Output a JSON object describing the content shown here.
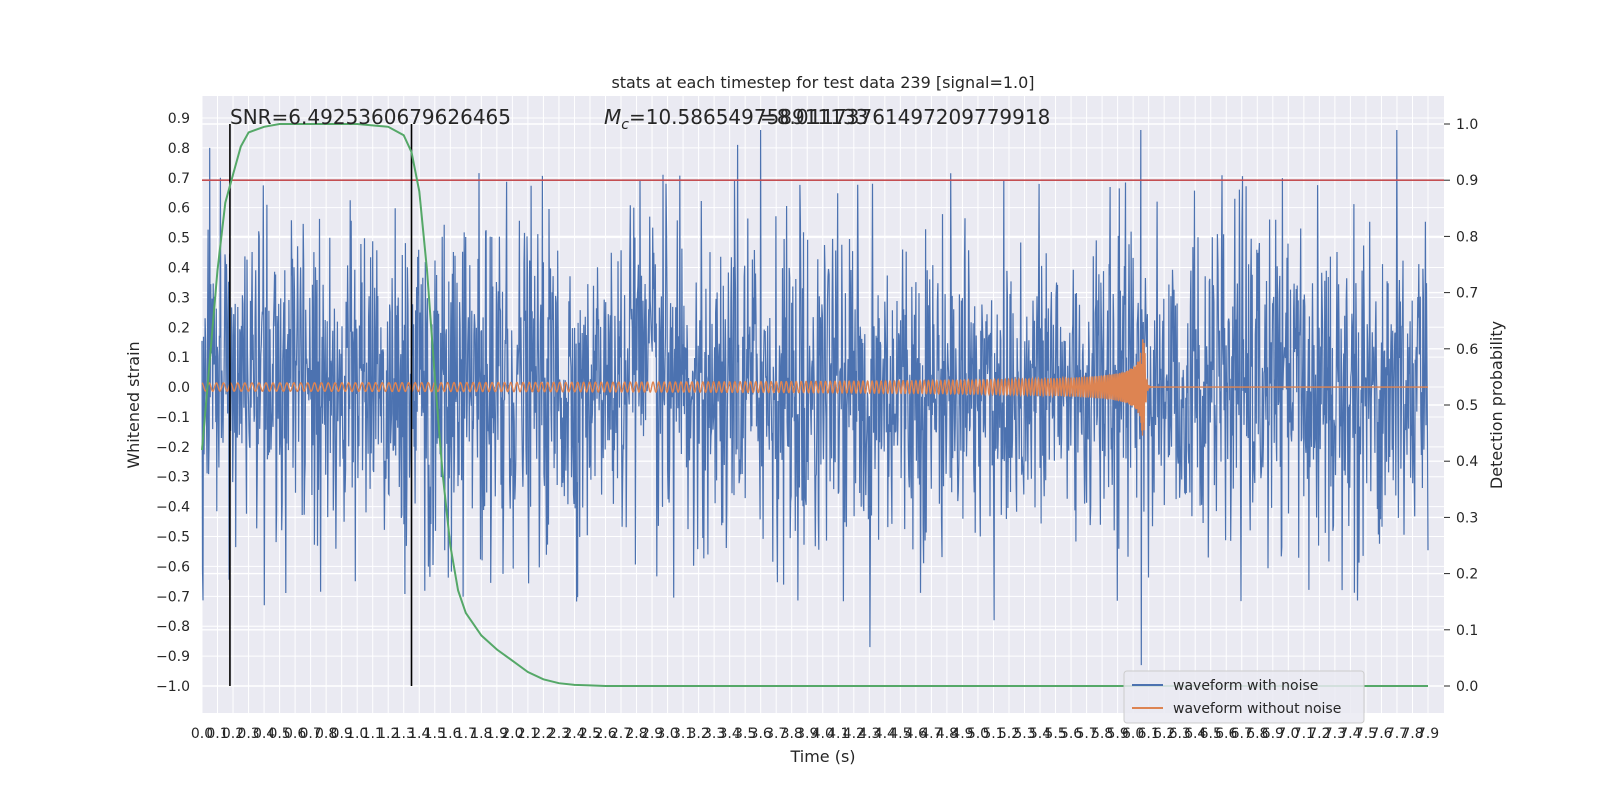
{
  "chart_data": {
    "type": "line",
    "title": "stats at each timestep for test data 239 [signal=1.0]",
    "xlabel": "Time (s)",
    "ylabel": "Whitened strain",
    "y2label": "Detection probability",
    "xlim": [
      0.0,
      7.9
    ],
    "ylim": [
      -1.0,
      0.9
    ],
    "y2lim": [
      0.0,
      1.0
    ],
    "x_ticks": [
      "0.0",
      "0.1",
      "0.2",
      "0.3",
      "0.4",
      "0.5",
      "0.6",
      "0.7",
      "0.8",
      "0.9",
      "1.0",
      "1.1",
      "1.2",
      "1.3",
      "1.4",
      "1.5",
      "1.6",
      "1.7",
      "1.8",
      "1.9",
      "2.0",
      "2.1",
      "2.2",
      "2.3",
      "2.4",
      "2.5",
      "2.6",
      "2.7",
      "2.8",
      "2.9",
      "3.0",
      "3.1",
      "3.2",
      "3.3",
      "3.4",
      "3.5",
      "3.6",
      "3.7",
      "3.8",
      "3.9",
      "4.0",
      "4.1",
      "4.2",
      "4.3",
      "4.4",
      "4.5",
      "4.6",
      "4.7",
      "4.8",
      "4.9",
      "5.0",
      "5.1",
      "5.2",
      "5.3",
      "5.4",
      "5.5",
      "5.6",
      "5.7",
      "5.8",
      "5.9",
      "6.0",
      "6.1",
      "6.2",
      "6.3",
      "6.4",
      "6.5",
      "6.6",
      "6.7",
      "6.8",
      "6.9",
      "7.0",
      "7.1",
      "7.2",
      "7.3",
      "7.4",
      "7.5",
      "7.6",
      "7.7",
      "7.8",
      "7.9"
    ],
    "y_ticks": [
      "−1.0",
      "−0.9",
      "−0.8",
      "−0.7",
      "−0.6",
      "−0.5",
      "−0.4",
      "−0.3",
      "−0.2",
      "−0.1",
      "0.0",
      "0.1",
      "0.2",
      "0.3",
      "0.4",
      "0.5",
      "0.6",
      "0.7",
      "0.8",
      "0.9"
    ],
    "y2_ticks": [
      "0.0",
      "0.1",
      "0.2",
      "0.3",
      "0.4",
      "0.5",
      "0.6",
      "0.7",
      "0.8",
      "0.9",
      "1.0"
    ],
    "grid": true,
    "legend_placement": "lower-right",
    "annotations": {
      "snr": "SNR=6.4925360679626465",
      "mc": "M",
      "mc_sub": "c",
      "mc_value": "=10.586549758911133",
      "overlap": "=8.01173761497209779918"
    },
    "threshold": {
      "probability": 0.9,
      "color": "#c44e52"
    },
    "vertical_markers_s": [
      0.18,
      1.35
    ],
    "series": [
      {
        "name": "waveform with noise",
        "color": "#4c72b0",
        "kind": "noise",
        "amplitude_typical": 0.3,
        "peak_positive_examples": [
          [
            0.05,
            0.8
          ],
          [
            0.12,
            0.7
          ],
          [
            3.45,
            0.81
          ],
          [
            3.6,
            0.86
          ],
          [
            6.05,
            0.86
          ],
          [
            7.7,
            0.86
          ]
        ],
        "peak_negative_examples": [
          [
            0.0,
            -0.61
          ],
          [
            0.4,
            -0.73
          ],
          [
            4.3,
            -0.87
          ],
          [
            6.05,
            -0.93
          ],
          [
            5.1,
            -0.78
          ]
        ]
      },
      {
        "name": "waveform without noise",
        "color": "#dd8452",
        "kind": "chirp",
        "merger_time_s": 6.07,
        "peak_amplitude": 0.17,
        "trough_amplitude": -0.25
      },
      {
        "name": "detection probability",
        "color": "#55a868",
        "axis": "right",
        "x": [
          0.0,
          0.05,
          0.1,
          0.15,
          0.2,
          0.25,
          0.3,
          0.4,
          0.5,
          0.7,
          1.0,
          1.2,
          1.3,
          1.35,
          1.4,
          1.45,
          1.5,
          1.55,
          1.6,
          1.65,
          1.7,
          1.8,
          1.9,
          2.0,
          2.1,
          2.2,
          2.3,
          2.4,
          2.5,
          2.6,
          3.0,
          4.0,
          5.0,
          6.0,
          7.0,
          7.9
        ],
        "values": [
          0.42,
          0.58,
          0.74,
          0.86,
          0.91,
          0.96,
          0.985,
          0.995,
          1.0,
          1.0,
          1.0,
          0.995,
          0.98,
          0.95,
          0.88,
          0.74,
          0.55,
          0.38,
          0.25,
          0.17,
          0.13,
          0.09,
          0.065,
          0.045,
          0.025,
          0.012,
          0.005,
          0.002,
          0.001,
          0.0,
          0.0,
          0.0,
          0.0,
          0.0,
          0.0,
          0.0
        ]
      }
    ]
  }
}
